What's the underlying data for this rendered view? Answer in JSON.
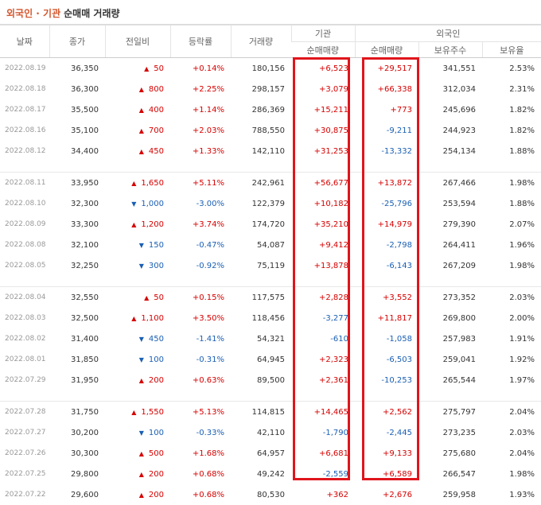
{
  "title": {
    "main": "외국인 · 기관",
    "sub": "순매매 거래량"
  },
  "columns": {
    "date": "날짜",
    "close": "종가",
    "change": "전일비",
    "rate": "등락률",
    "volume": "거래량",
    "inst_group": "기관",
    "foreign_group": "외국인",
    "inst_net": "순매매량",
    "foreign_net": "순매매량",
    "foreign_hold": "보유주수",
    "foreign_ratio": "보유율"
  },
  "colors": {
    "up": "#d60000",
    "down": "#1a5fb4",
    "highlight_box": "#e0151c",
    "title_accent": "#d4562c"
  },
  "groups": [
    [
      {
        "date": "2022.08.19",
        "close": "36,350",
        "dir": "up",
        "change": "50",
        "rate": "+0.14%",
        "volume": "180,156",
        "inst": "+6,523",
        "foreign": "+29,517",
        "hold": "341,551",
        "ratio": "2.53%"
      },
      {
        "date": "2022.08.18",
        "close": "36,300",
        "dir": "up",
        "change": "800",
        "rate": "+2.25%",
        "volume": "298,157",
        "inst": "+3,079",
        "foreign": "+66,338",
        "hold": "312,034",
        "ratio": "2.31%"
      },
      {
        "date": "2022.08.17",
        "close": "35,500",
        "dir": "up",
        "change": "400",
        "rate": "+1.14%",
        "volume": "286,369",
        "inst": "+15,211",
        "foreign": "+773",
        "hold": "245,696",
        "ratio": "1.82%"
      },
      {
        "date": "2022.08.16",
        "close": "35,100",
        "dir": "up",
        "change": "700",
        "rate": "+2.03%",
        "volume": "788,550",
        "inst": "+30,875",
        "foreign": "-9,211",
        "hold": "244,923",
        "ratio": "1.82%"
      },
      {
        "date": "2022.08.12",
        "close": "34,400",
        "dir": "up",
        "change": "450",
        "rate": "+1.33%",
        "volume": "142,110",
        "inst": "+31,253",
        "foreign": "-13,332",
        "hold": "254,134",
        "ratio": "1.88%"
      }
    ],
    [
      {
        "date": "2022.08.11",
        "close": "33,950",
        "dir": "up",
        "change": "1,650",
        "rate": "+5.11%",
        "volume": "242,961",
        "inst": "+56,677",
        "foreign": "+13,872",
        "hold": "267,466",
        "ratio": "1.98%"
      },
      {
        "date": "2022.08.10",
        "close": "32,300",
        "dir": "down",
        "change": "1,000",
        "rate": "-3.00%",
        "volume": "122,379",
        "inst": "+10,182",
        "foreign": "-25,796",
        "hold": "253,594",
        "ratio": "1.88%"
      },
      {
        "date": "2022.08.09",
        "close": "33,300",
        "dir": "up",
        "change": "1,200",
        "rate": "+3.74%",
        "volume": "174,720",
        "inst": "+35,210",
        "foreign": "+14,979",
        "hold": "279,390",
        "ratio": "2.07%"
      },
      {
        "date": "2022.08.08",
        "close": "32,100",
        "dir": "down",
        "change": "150",
        "rate": "-0.47%",
        "volume": "54,087",
        "inst": "+9,412",
        "foreign": "-2,798",
        "hold": "264,411",
        "ratio": "1.96%"
      },
      {
        "date": "2022.08.05",
        "close": "32,250",
        "dir": "down",
        "change": "300",
        "rate": "-0.92%",
        "volume": "75,119",
        "inst": "+13,878",
        "foreign": "-6,143",
        "hold": "267,209",
        "ratio": "1.98%"
      }
    ],
    [
      {
        "date": "2022.08.04",
        "close": "32,550",
        "dir": "up",
        "change": "50",
        "rate": "+0.15%",
        "volume": "117,575",
        "inst": "+2,828",
        "foreign": "+3,552",
        "hold": "273,352",
        "ratio": "2.03%"
      },
      {
        "date": "2022.08.03",
        "close": "32,500",
        "dir": "up",
        "change": "1,100",
        "rate": "+3.50%",
        "volume": "118,456",
        "inst": "-3,277",
        "foreign": "+11,817",
        "hold": "269,800",
        "ratio": "2.00%"
      },
      {
        "date": "2022.08.02",
        "close": "31,400",
        "dir": "down",
        "change": "450",
        "rate": "-1.41%",
        "volume": "54,321",
        "inst": "-610",
        "foreign": "-1,058",
        "hold": "257,983",
        "ratio": "1.91%"
      },
      {
        "date": "2022.08.01",
        "close": "31,850",
        "dir": "down",
        "change": "100",
        "rate": "-0.31%",
        "volume": "64,945",
        "inst": "+2,323",
        "foreign": "-6,503",
        "hold": "259,041",
        "ratio": "1.92%"
      },
      {
        "date": "2022.07.29",
        "close": "31,950",
        "dir": "up",
        "change": "200",
        "rate": "+0.63%",
        "volume": "89,500",
        "inst": "+2,361",
        "foreign": "-10,253",
        "hold": "265,544",
        "ratio": "1.97%"
      }
    ],
    [
      {
        "date": "2022.07.28",
        "close": "31,750",
        "dir": "up",
        "change": "1,550",
        "rate": "+5.13%",
        "volume": "114,815",
        "inst": "+14,465",
        "foreign": "+2,562",
        "hold": "275,797",
        "ratio": "2.04%"
      },
      {
        "date": "2022.07.27",
        "close": "30,200",
        "dir": "down",
        "change": "100",
        "rate": "-0.33%",
        "volume": "42,110",
        "inst": "-1,790",
        "foreign": "-2,445",
        "hold": "273,235",
        "ratio": "2.03%"
      },
      {
        "date": "2022.07.26",
        "close": "30,300",
        "dir": "up",
        "change": "500",
        "rate": "+1.68%",
        "volume": "64,957",
        "inst": "+6,681",
        "foreign": "+9,133",
        "hold": "275,680",
        "ratio": "2.04%"
      },
      {
        "date": "2022.07.25",
        "close": "29,800",
        "dir": "up",
        "change": "200",
        "rate": "+0.68%",
        "volume": "49,242",
        "inst": "-2,559",
        "foreign": "+6,589",
        "hold": "266,547",
        "ratio": "1.98%"
      },
      {
        "date": "2022.07.22",
        "close": "29,600",
        "dir": "up",
        "change": "200",
        "rate": "+0.68%",
        "volume": "80,530",
        "inst": "+362",
        "foreign": "+2,676",
        "hold": "259,958",
        "ratio": "1.93%"
      }
    ]
  ]
}
